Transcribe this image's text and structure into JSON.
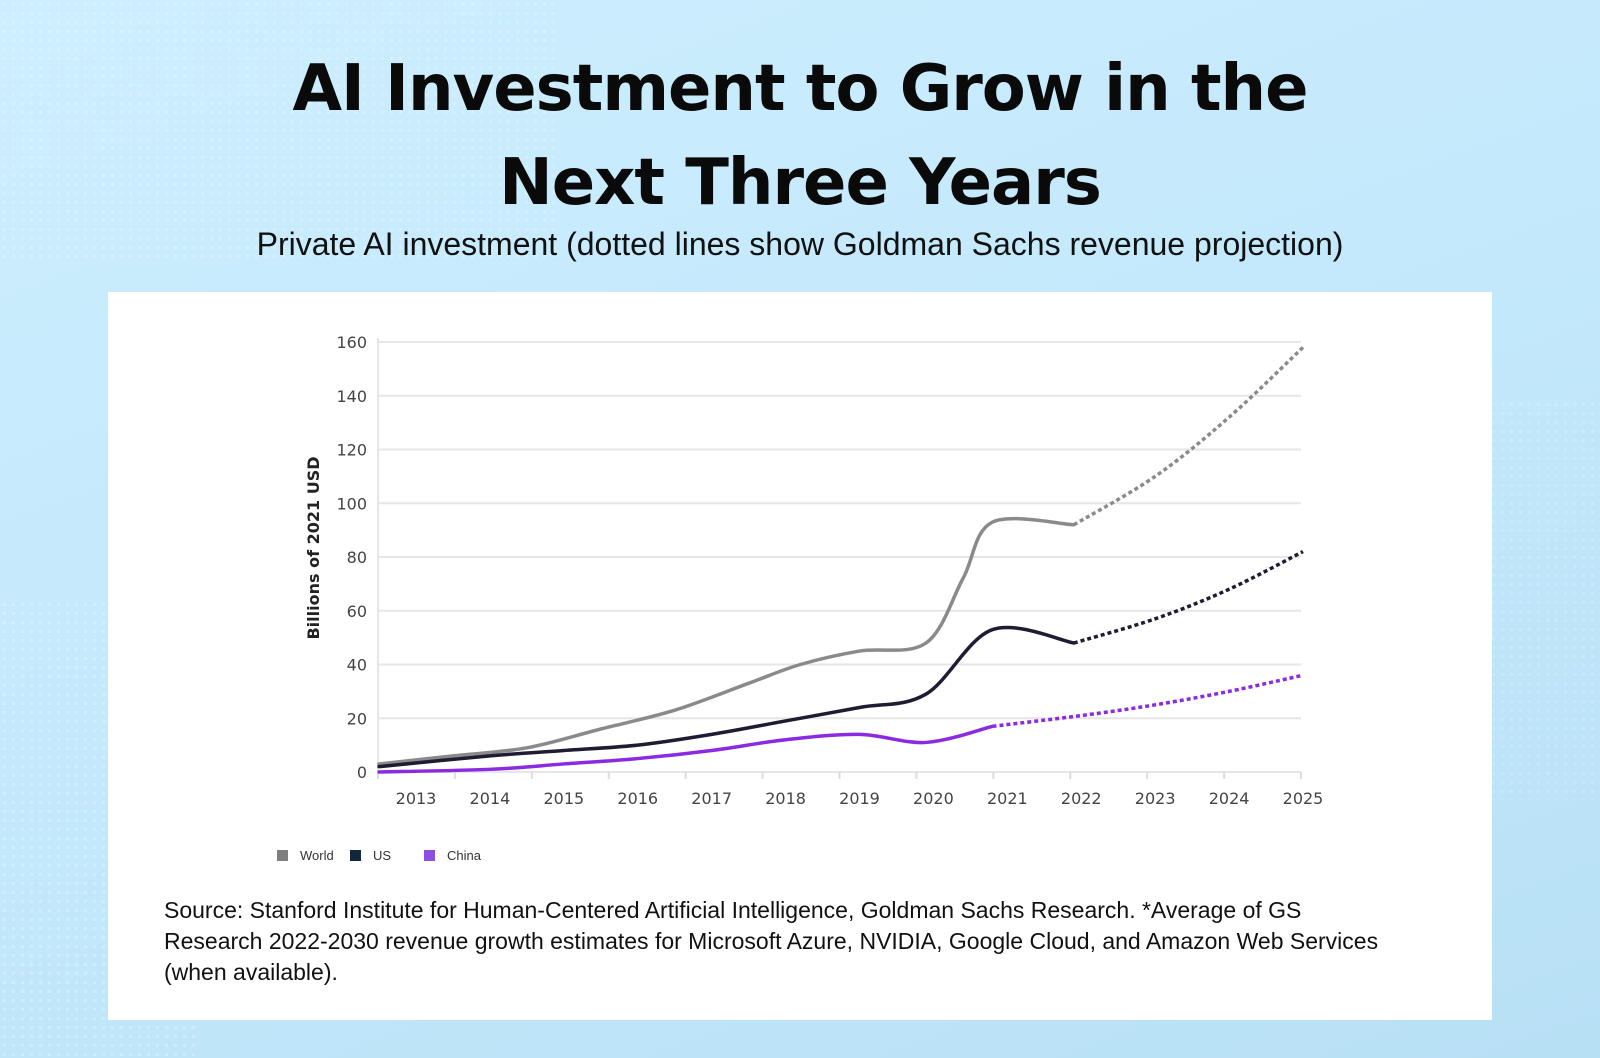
{
  "title_line1": "AI Investment to Grow in the",
  "title_line2": "Next Three Years",
  "subtitle": "Private AI investment (dotted lines show Goldman Sachs revenue projection)",
  "source": "Source: Stanford Institute for Human-Centered Artificial Intelligence, Goldman Sachs Research. *Average of GS Research 2022-2030 revenue growth estimates for Microsoft Azure, NVIDIA, Google Cloud, and Amazon Web Services (when available).",
  "chart_data": {
    "type": "line",
    "ylabel": "Billions of 2021 USD",
    "xlabel": "",
    "ylim": [
      0,
      160
    ],
    "yticks": [
      "0",
      "20",
      "40",
      "60",
      "80",
      "100",
      "120",
      "140",
      "160"
    ],
    "xticks": [
      "2013",
      "2014",
      "2015",
      "2016",
      "2017",
      "2018",
      "2019",
      "2020",
      "2021",
      "2022",
      "2023",
      "2024",
      "2025"
    ],
    "grid": true,
    "legend": "bottom-left",
    "series": [
      {
        "name": "World",
        "color": "#8a8a8a",
        "actual": [
          [
            2012.5,
            3
          ],
          [
            2013.5,
            6
          ],
          [
            2014.5,
            9
          ],
          [
            2015.5,
            16
          ],
          [
            2016.5,
            23
          ],
          [
            2017.5,
            33
          ],
          [
            2018.2,
            40
          ],
          [
            2019,
            45
          ],
          [
            2019.9,
            48
          ],
          [
            2020.4,
            72
          ],
          [
            2020.8,
            93
          ],
          [
            2021.9,
            92
          ]
        ],
        "projected": [
          [
            2021.9,
            92
          ],
          [
            2023,
            110
          ],
          [
            2024,
            132
          ],
          [
            2025,
            158
          ]
        ]
      },
      {
        "name": "US",
        "color": "#1e1b33",
        "actual": [
          [
            2012.5,
            2
          ],
          [
            2014,
            6
          ],
          [
            2015,
            8
          ],
          [
            2016,
            10
          ],
          [
            2017,
            14
          ],
          [
            2018,
            19
          ],
          [
            2019,
            24
          ],
          [
            2019.9,
            29
          ],
          [
            2020.8,
            53
          ],
          [
            2021.9,
            48
          ]
        ],
        "projected": [
          [
            2021.9,
            48
          ],
          [
            2023,
            57
          ],
          [
            2024,
            68
          ],
          [
            2025,
            82
          ]
        ]
      },
      {
        "name": "China",
        "color": "#8a2be2",
        "actual": [
          [
            2012.5,
            0
          ],
          [
            2014,
            1
          ],
          [
            2015,
            3
          ],
          [
            2016,
            5
          ],
          [
            2017,
            8
          ],
          [
            2018,
            12
          ],
          [
            2019,
            14
          ],
          [
            2019.9,
            11
          ],
          [
            2020.8,
            17
          ]
        ],
        "projected": [
          [
            2020.8,
            17
          ],
          [
            2022,
            21
          ],
          [
            2023,
            25
          ],
          [
            2024,
            30
          ],
          [
            2025,
            36
          ]
        ]
      }
    ],
    "legend_colors": {
      "World": "#7f7f7f",
      "US": "#13263a",
      "China": "#8c4fe0"
    }
  }
}
